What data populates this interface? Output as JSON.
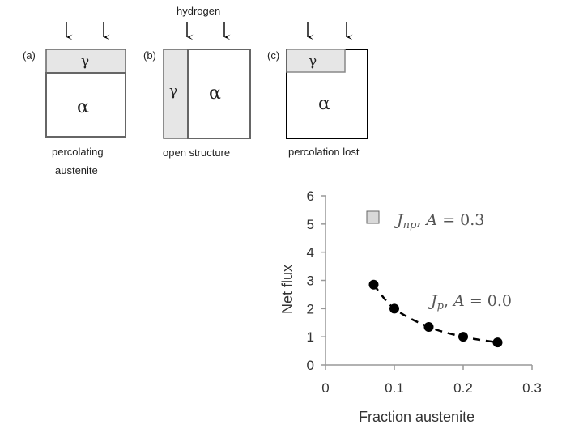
{
  "diagram": {
    "hydrogen_label": "hydrogen",
    "panels": [
      {
        "tag": "(a)",
        "caption_line1": "percolating",
        "caption_line2": "austenite",
        "gamma": "γ",
        "alpha": "α"
      },
      {
        "tag": "(b)",
        "caption_line1": "open structure",
        "gamma": "γ",
        "alpha": "α"
      },
      {
        "tag": "(c)",
        "caption_line1": "percolation lost",
        "gamma": "γ",
        "alpha": "α"
      }
    ],
    "colors": {
      "gamma_fill": "#e6e6e6",
      "alpha_fill": "#ffffff",
      "border": "#555555",
      "border_c": "#000000"
    }
  },
  "chart_data": {
    "type": "line",
    "xlabel": "Fraction austenite",
    "ylabel": "Net flux",
    "xlim": [
      0,
      0.3
    ],
    "ylim": [
      0,
      6
    ],
    "xticks": [
      "0",
      "0.1",
      "0.2",
      "0.3"
    ],
    "yticks": [
      "0",
      "1",
      "2",
      "3",
      "4",
      "5",
      "6"
    ],
    "legend": [
      {
        "label": "J_np, A = 0.3",
        "marker": "square",
        "color": "#d9d9d9"
      },
      {
        "label": "J_p, A = 0.0",
        "marker": "circle",
        "color": "#000000"
      }
    ],
    "series": [
      {
        "name": "J_p, A = 0.0",
        "x": [
          0.07,
          0.1,
          0.15,
          0.2,
          0.25
        ],
        "y": [
          2.85,
          2.0,
          1.35,
          1.0,
          0.8
        ],
        "style": "dashed",
        "color": "#000000"
      }
    ],
    "grid": false
  }
}
